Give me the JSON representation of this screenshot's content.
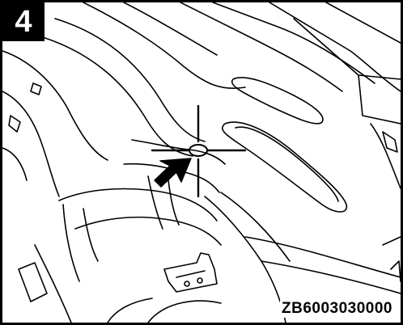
{
  "figure": {
    "step_number": "4",
    "reference_code": "ZB6003030000",
    "line_color": "#000000",
    "background_color": "#ffffff",
    "icons": [
      "crosshair-marker",
      "pointer-arrow"
    ]
  }
}
